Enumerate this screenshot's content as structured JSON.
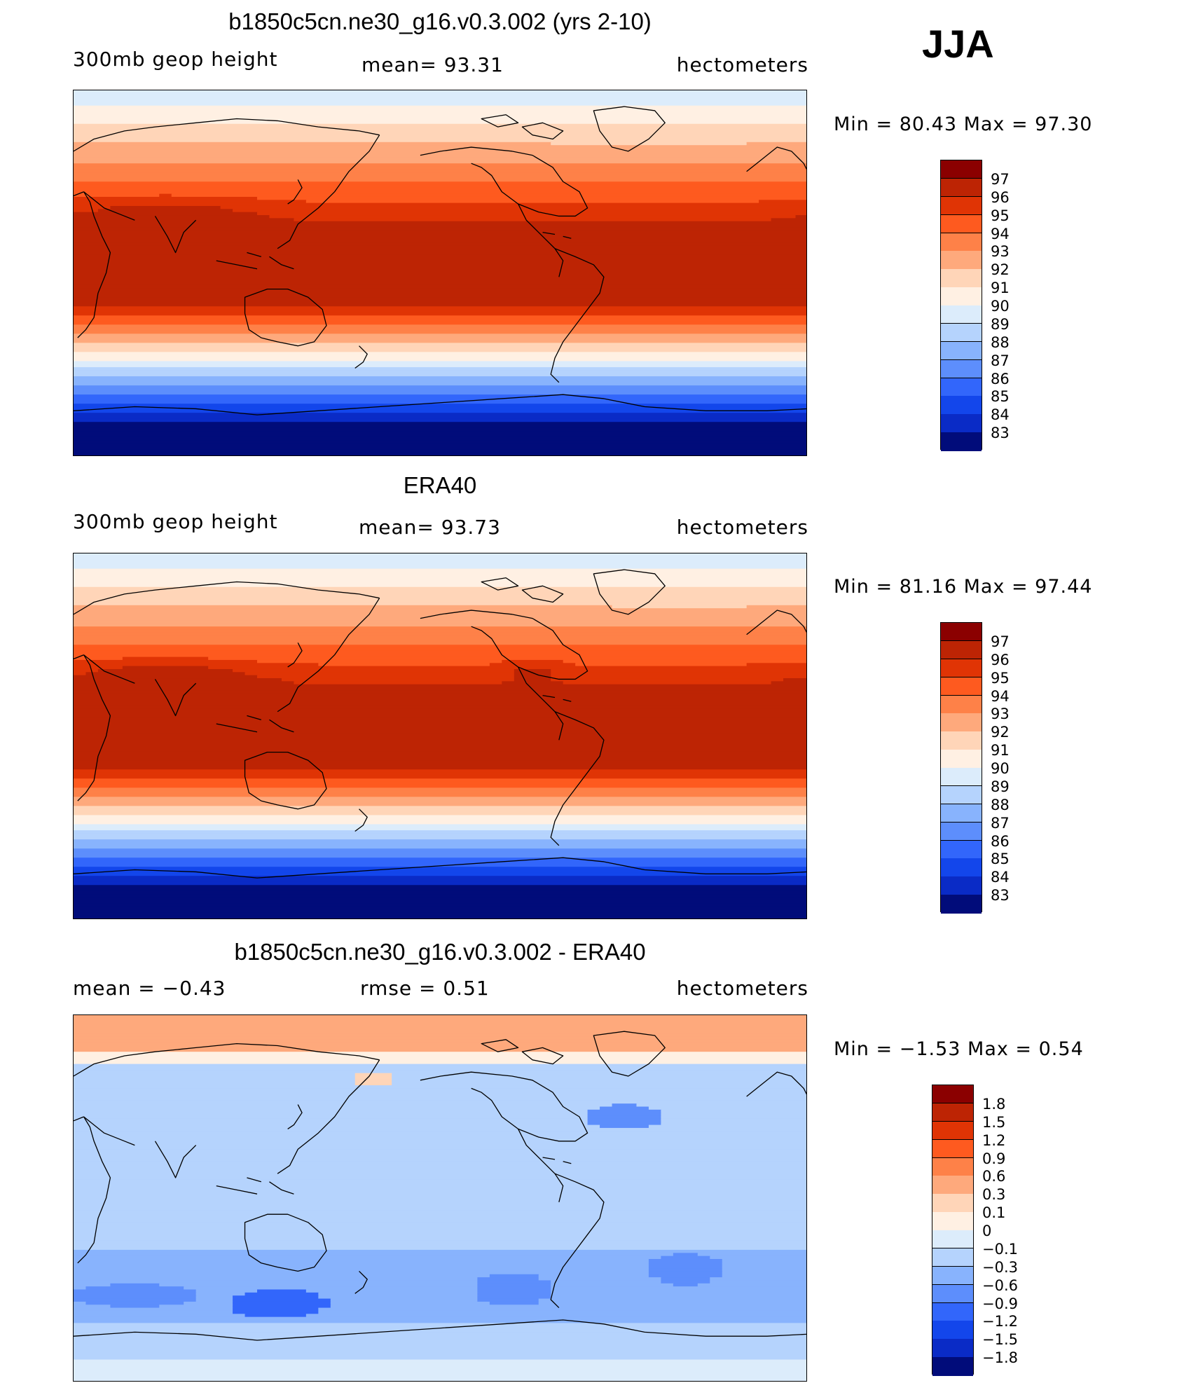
{
  "season": "JJA",
  "panels": [
    {
      "title": "b1850c5cn.ne30_g16.v0.3.002 (yrs 2-10)",
      "left_label": "300mb geop height",
      "center_label": "mean=   93.31",
      "right_label": "hectometers",
      "minmax": "Min =   80.43 Max =   97.30",
      "field": "model"
    },
    {
      "title": "ERA40",
      "left_label": "300mb geop height",
      "center_label": "mean=   93.73",
      "right_label": "hectometers",
      "minmax": "Min =   81.16 Max =   97.44",
      "field": "obs"
    },
    {
      "title": "b1850c5cn.ne30_g16.v0.3.002 - ERA40",
      "left_label": "mean =   −0.43",
      "center_label": "rmse =    0.51",
      "right_label": "hectometers",
      "minmax": "Min =   −1.53 Max =    0.54",
      "field": "diff"
    }
  ],
  "colorbars": {
    "height": {
      "labels": [
        "97",
        "96",
        "95",
        "94",
        "93",
        "92",
        "91",
        "90",
        "89",
        "88",
        "87",
        "86",
        "85",
        "84",
        "83"
      ],
      "colors": [
        "#8b0000",
        "#bd2404",
        "#e03405",
        "#fe5a1f",
        "#fe8148",
        "#fea97c",
        "#ffd5b8",
        "#fff0e3",
        "#dcecfb",
        "#b5d3fd",
        "#88b3fd",
        "#5d8efc",
        "#3266fb",
        "#1346eb",
        "#0a2bc6",
        "#010c7a"
      ]
    },
    "diff": {
      "labels": [
        "1.8",
        "1.5",
        "1.2",
        "0.9",
        "0.6",
        "0.3",
        "0.1",
        "0",
        "−0.1",
        "−0.3",
        "−0.6",
        "−0.9",
        "−1.2",
        "−1.5",
        "−1.8"
      ],
      "colors": [
        "#8b0000",
        "#bd2404",
        "#e03405",
        "#fe5a1f",
        "#fe8148",
        "#fea97c",
        "#ffd5b8",
        "#fff0e3",
        "#dcecfb",
        "#b5d3fd",
        "#88b3fd",
        "#5d8efc",
        "#3266fb",
        "#1346eb",
        "#0a2bc6",
        "#010c7a"
      ]
    }
  }
}
